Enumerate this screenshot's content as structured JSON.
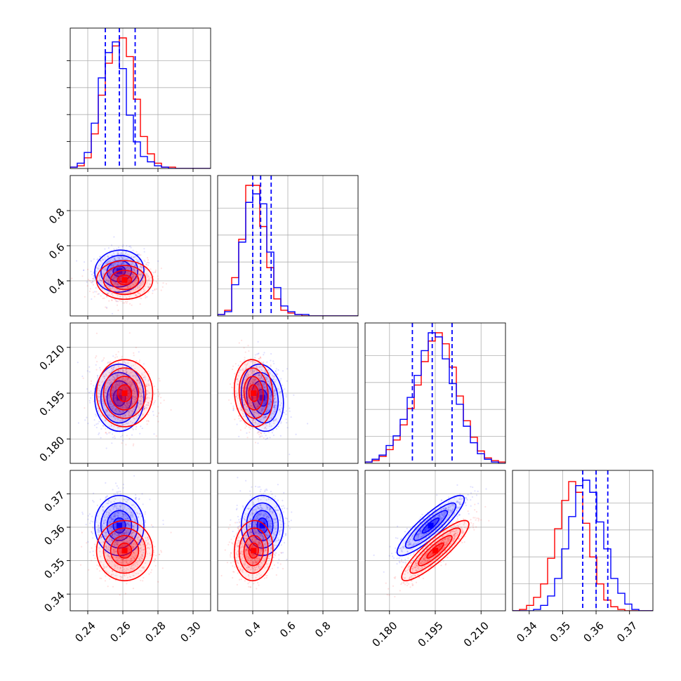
{
  "colors": {
    "series_a": "#0000ff",
    "series_b": "#ff0000"
  },
  "chart_data": {
    "type": "corner",
    "grid": true,
    "series": [
      {
        "color": "blue"
      },
      {
        "color": "red"
      }
    ],
    "parameters": [
      {
        "range": [
          0.23,
          0.31
        ],
        "ticks": [
          0.24,
          0.26,
          0.28,
          0.3
        ],
        "tick_labels": [
          "0.24",
          "0.26",
          "0.28",
          "0.30"
        ],
        "quantiles": [
          0.25,
          0.258,
          0.267
        ],
        "hist_edges": [
          0.23,
          0.234,
          0.238,
          0.242,
          0.246,
          0.25,
          0.254,
          0.258,
          0.262,
          0.266,
          0.27,
          0.274,
          0.278,
          0.282,
          0.286,
          0.29,
          0.294,
          0.298,
          0.302,
          0.306,
          0.31
        ],
        "hist_blue": [
          1,
          4,
          12,
          34,
          68,
          87,
          95,
          75,
          40,
          20,
          9,
          5,
          2,
          1,
          0,
          0,
          0,
          0,
          0,
          0
        ],
        "hist_red": [
          1,
          2,
          8,
          26,
          55,
          79,
          92,
          98,
          84,
          52,
          24,
          11,
          4,
          1,
          1,
          0,
          0,
          0,
          0,
          0
        ],
        "mean_blue": 0.258,
        "sd_blue": 0.007,
        "mean_red": 0.261,
        "sd_red": 0.008
      },
      {
        "range": [
          0.2,
          1.0
        ],
        "ticks": [
          0.4,
          0.6,
          0.8
        ],
        "tick_labels": [
          "0.4",
          "0.6",
          "0.8"
        ],
        "quantiles": [
          0.4,
          0.445,
          0.505
        ],
        "hist_edges": [
          0.2,
          0.24,
          0.28,
          0.32,
          0.36,
          0.4,
          0.44,
          0.48,
          0.52,
          0.56,
          0.6,
          0.64,
          0.68,
          0.72,
          0.76,
          0.8,
          0.84,
          0.88,
          0.92,
          0.96,
          1.0
        ],
        "hist_blue": [
          1,
          3,
          22,
          52,
          80,
          86,
          79,
          45,
          20,
          7,
          3,
          1,
          1,
          0,
          0,
          0,
          0,
          0,
          0,
          0
        ],
        "hist_red": [
          1,
          4,
          27,
          54,
          92,
          92,
          63,
          34,
          12,
          4,
          2,
          1,
          0,
          0,
          0,
          0,
          0,
          0,
          0,
          0
        ],
        "mean_blue": 0.455,
        "sd_blue": 0.06,
        "mean_red": 0.405,
        "sd_red": 0.055
      },
      {
        "range": [
          0.172,
          0.218
        ],
        "ticks": [
          0.18,
          0.195,
          0.21
        ],
        "tick_labels": [
          "0.180",
          "0.195",
          "0.210"
        ],
        "quantiles": [
          0.1875,
          0.194,
          0.2005
        ],
        "hist_edges": [
          0.172,
          0.1743,
          0.1766,
          0.1789,
          0.1812,
          0.1835,
          0.1858,
          0.1881,
          0.1904,
          0.1927,
          0.195,
          0.1973,
          0.1996,
          0.2019,
          0.2042,
          0.2065,
          0.2088,
          0.2111,
          0.2134,
          0.2157,
          0.218
        ],
        "hist_blue": [
          1,
          3,
          6,
          13,
          20,
          32,
          48,
          64,
          82,
          95,
          92,
          76,
          58,
          43,
          27,
          15,
          7,
          3,
          1,
          0
        ],
        "hist_red": [
          1,
          2,
          5,
          10,
          17,
          28,
          40,
          57,
          74,
          89,
          95,
          87,
          70,
          49,
          31,
          19,
          9,
          4,
          2,
          1
        ],
        "mean_blue": 0.1935,
        "sd_blue": 0.0055,
        "mean_red": 0.195,
        "sd_red": 0.0055
      },
      {
        "range": [
          0.335,
          0.377
        ],
        "ticks": [
          0.34,
          0.35,
          0.36,
          0.37
        ],
        "tick_labels": [
          "0.34",
          "0.35",
          "0.36",
          "0.37"
        ],
        "quantiles": [
          0.356,
          0.36,
          0.3635
        ],
        "hist_edges": [
          0.335,
          0.3371,
          0.3392,
          0.3413,
          0.3434,
          0.3455,
          0.3476,
          0.3497,
          0.3518,
          0.3539,
          0.356,
          0.3581,
          0.3602,
          0.3623,
          0.3644,
          0.3665,
          0.3686,
          0.3707,
          0.3728,
          0.3749,
          0.377
        ],
        "hist_blue": [
          0,
          0,
          0,
          1,
          4,
          11,
          24,
          46,
          70,
          93,
          97,
          88,
          66,
          46,
          24,
          13,
          5,
          1,
          0,
          0
        ],
        "hist_red": [
          0,
          1,
          4,
          10,
          20,
          39,
          61,
          82,
          96,
          88,
          65,
          40,
          20,
          8,
          3,
          1,
          0,
          0,
          0,
          0
        ],
        "mean_blue": 0.3605,
        "sd_blue": 0.0045,
        "mean_red": 0.353,
        "sd_red": 0.0045
      }
    ],
    "correlations": {
      "1,0": {
        "blue": 0.05,
        "red": 0.0
      },
      "2,0": {
        "blue": 0.0,
        "red": 0.0
      },
      "2,1": {
        "blue": -0.15,
        "red": -0.1
      },
      "3,0": {
        "blue": 0.0,
        "red": 0.0
      },
      "3,1": {
        "blue": 0.0,
        "red": 0.05
      },
      "3,2": {
        "blue": 0.88,
        "red": 0.88
      }
    }
  }
}
